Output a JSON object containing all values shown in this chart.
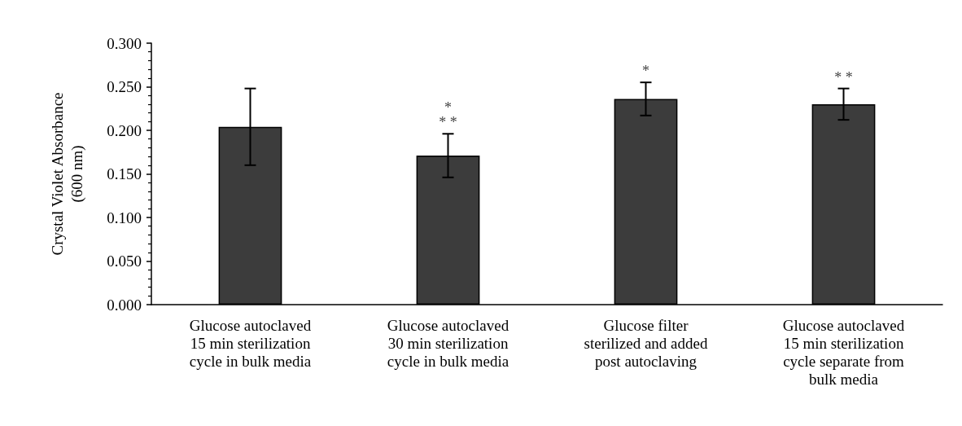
{
  "chart_data": {
    "type": "bar",
    "ylabel": "Crystal Violet Absorbance\n(600 nm)",
    "categories": [
      "Glucose autoclaved\n15 min sterilization\ncycle in bulk media",
      "Glucose autoclaved\n30 min sterilization\ncycle in bulk media",
      "Glucose filter\nsterilized and added\npost autoclaving",
      "Glucose autoclaved\n15 min sterilization\ncycle separate from\nbulk media"
    ],
    "values": [
      0.204,
      0.171,
      0.236,
      0.23
    ],
    "errors": [
      0.044,
      0.025,
      0.019,
      0.018
    ],
    "color": "#3c3c3c",
    "ylim": [
      0,
      0.3
    ],
    "yticks": [
      {
        "value": 0,
        "label": "0.000"
      },
      {
        "value": 0.05,
        "label": "0.050"
      },
      {
        "value": 0.1,
        "label": "0.100"
      },
      {
        "value": 0.15,
        "label": "0.150"
      },
      {
        "value": 0.2,
        "label": "0.200"
      },
      {
        "value": 0.25,
        "label": "0.250"
      },
      {
        "value": 0.3,
        "label": "0.300"
      }
    ],
    "grid": false,
    "annotations": [
      {
        "text": "*",
        "x": "Glucose autoclaved\n30 min sterilization\ncycle in bulk media",
        "y": 0.196
      },
      {
        "text": "* *",
        "x": "Glucose autoclaved\n30 min sterilization\ncycle in bulk media",
        "y": 0.196
      },
      {
        "text": "*",
        "x": "Glucose filter\nsterilized and added\npost autoclaving",
        "y": 0.255
      },
      {
        "text": "* *",
        "x": "Glucose autoclaved\n15 min sterilization\ncycle separate from\nbulk media",
        "y": 0.248
      }
    ]
  }
}
